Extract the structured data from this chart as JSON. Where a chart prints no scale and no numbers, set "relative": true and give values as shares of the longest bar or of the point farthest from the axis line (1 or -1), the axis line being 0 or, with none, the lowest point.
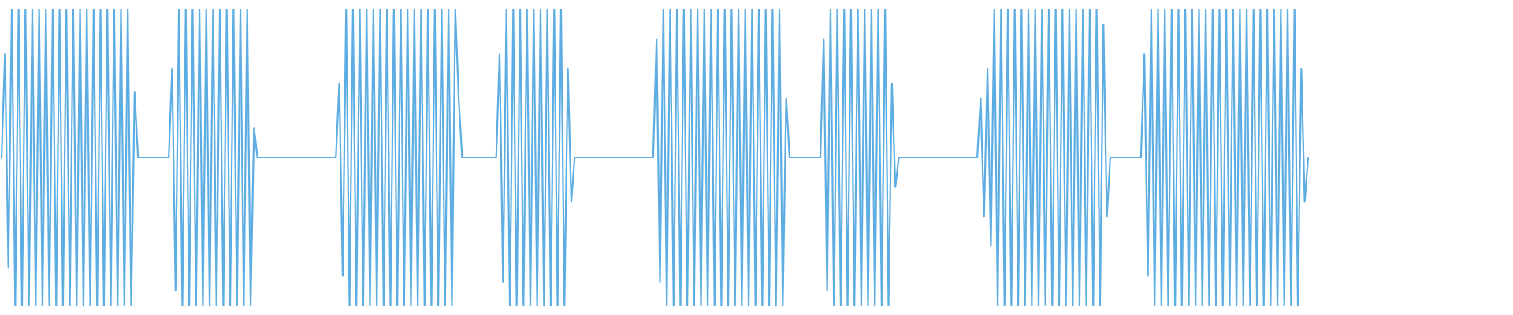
{
  "chart_data": {
    "type": "line",
    "relative": true,
    "categories": [
      null,
      null,
      null,
      null,
      null,
      null,
      null,
      null,
      null,
      null,
      null,
      null,
      null,
      null,
      null,
      null,
      null,
      null,
      null,
      null,
      null,
      null,
      null,
      null,
      null,
      null,
      null,
      null,
      null,
      null,
      null,
      null,
      null,
      null,
      null,
      null,
      null,
      null,
      null,
      null,
      null,
      null,
      null,
      null,
      null,
      null,
      null,
      null,
      null,
      null,
      null,
      null,
      null,
      null,
      null,
      null,
      null,
      null,
      null,
      null,
      null,
      null,
      null,
      null,
      null,
      null,
      null,
      null,
      null,
      null,
      null,
      null,
      null,
      null,
      null,
      null,
      null,
      null,
      null,
      null,
      null,
      null,
      null,
      null,
      null,
      null,
      null,
      null,
      null,
      null,
      null,
      null,
      null,
      null,
      null,
      null,
      null,
      null,
      null,
      null,
      null,
      null,
      null,
      null,
      null,
      null,
      null,
      null,
      null,
      null,
      null,
      null,
      null,
      null,
      null,
      null,
      null,
      null,
      null,
      null,
      null,
      null,
      null,
      null,
      null,
      null,
      null,
      null,
      null,
      null,
      null,
      null,
      null,
      null,
      null,
      null,
      null,
      null,
      null,
      null,
      null,
      null,
      null,
      null,
      null,
      null,
      null,
      null,
      null,
      null,
      null,
      null,
      null,
      null,
      null,
      null,
      null,
      null,
      null,
      null,
      null,
      null,
      null,
      null,
      null,
      null,
      null,
      null,
      null,
      null,
      null,
      null,
      null,
      null,
      null,
      null,
      null,
      null,
      null,
      null,
      null,
      null,
      null,
      null,
      null,
      null,
      null,
      null,
      null,
      null,
      null,
      null,
      null,
      null,
      null,
      null,
      null,
      null,
      null,
      null,
      null,
      null,
      null,
      null,
      null,
      null,
      null,
      null,
      null,
      null,
      null,
      null,
      null,
      null,
      null,
      null,
      null,
      null,
      null,
      null,
      null,
      null,
      null,
      null,
      null,
      null,
      null,
      null,
      null,
      null,
      null,
      null,
      null,
      null,
      null,
      null,
      null,
      null,
      null,
      null,
      null,
      null,
      null,
      null,
      null,
      null,
      null,
      null,
      null,
      null,
      null,
      null,
      null,
      null,
      null,
      null,
      null,
      null,
      null,
      null,
      null,
      null,
      null,
      null,
      null,
      null,
      null,
      null,
      null,
      null,
      null,
      null,
      null,
      null,
      null,
      null,
      null,
      null,
      null,
      null,
      null,
      null,
      null,
      null,
      null,
      null,
      null,
      null,
      null,
      null,
      null,
      null,
      null,
      null,
      null,
      null,
      null,
      null,
      null,
      null,
      null,
      null,
      null,
      null,
      null,
      null,
      null,
      null,
      null,
      null,
      null,
      null,
      null,
      null,
      null,
      null,
      null,
      null,
      null,
      null,
      null,
      null,
      null,
      null,
      null,
      null,
      null,
      null,
      null,
      null,
      null,
      null,
      null,
      null,
      null,
      null,
      null,
      null,
      null,
      null,
      null,
      null,
      null,
      null,
      null,
      null,
      null,
      null,
      null,
      null,
      null,
      null,
      null,
      null,
      null,
      null,
      null,
      null,
      null,
      null,
      null,
      null,
      null,
      null,
      null,
      null,
      null,
      null,
      null,
      null,
      null,
      null,
      null,
      null,
      null,
      null,
      null,
      null,
      null,
      null,
      null,
      null,
      null,
      null
    ],
    "series": [
      {
        "color": "#5dade2",
        "values": [
          0.5,
          0.85,
          0.13,
          1,
          0,
          1,
          0,
          1,
          0,
          1,
          0,
          1,
          0,
          1,
          0,
          1,
          0,
          1,
          0,
          1,
          0,
          1,
          0,
          1,
          0,
          1,
          0,
          1,
          0,
          1,
          0,
          1,
          0,
          1,
          0,
          1,
          0,
          1,
          0,
          0.72,
          0.5,
          0.5,
          0.5,
          0.5,
          0.5,
          0.5,
          0.5,
          0.5,
          0.5,
          0.5,
          0.8,
          0.05,
          1,
          0,
          1,
          0,
          1,
          0,
          1,
          0,
          1,
          0,
          1,
          0,
          1,
          0,
          1,
          0,
          1,
          0,
          1,
          0,
          1,
          0,
          0.6,
          0.5,
          0.5,
          0.5,
          0.5,
          0.5,
          0.5,
          0.5,
          0.5,
          0.5,
          0.5,
          0.5,
          0.5,
          0.5,
          0.5,
          0.5,
          0.5,
          0.5,
          0.5,
          0.5,
          0.5,
          0.5,
          0.5,
          0.5,
          0.5,
          0.75,
          0.1,
          1,
          0,
          1,
          0,
          1,
          0,
          1,
          0,
          1,
          0,
          1,
          0,
          1,
          0,
          1,
          0,
          1,
          0,
          1,
          0,
          1,
          0,
          1,
          0,
          1,
          0,
          1,
          0,
          1,
          0,
          1,
          0,
          1,
          0.7,
          0.5,
          0.5,
          0.5,
          0.5,
          0.5,
          0.5,
          0.5,
          0.5,
          0.5,
          0.5,
          0.5,
          0.85,
          0.08,
          1,
          0,
          1,
          0,
          1,
          0,
          1,
          0,
          1,
          0,
          1,
          0,
          1,
          0,
          1,
          0,
          1,
          0,
          0.8,
          0.35,
          0.5,
          0.5,
          0.5,
          0.5,
          0.5,
          0.5,
          0.5,
          0.5,
          0.5,
          0.5,
          0.5,
          0.5,
          0.5,
          0.5,
          0.5,
          0.5,
          0.5,
          0.5,
          0.5,
          0.5,
          0.5,
          0.5,
          0.5,
          0.5,
          0.9,
          0.08,
          1,
          0,
          1,
          0,
          1,
          0,
          1,
          0,
          1,
          0,
          1,
          0,
          1,
          0,
          1,
          0,
          1,
          0,
          1,
          0,
          1,
          0,
          1,
          0,
          1,
          0,
          1,
          0,
          1,
          0,
          1,
          0,
          1,
          0,
          1,
          0,
          0.7,
          0.5,
          0.5,
          0.5,
          0.5,
          0.5,
          0.5,
          0.5,
          0.5,
          0.5,
          0.5,
          0.9,
          0.05,
          1,
          0,
          1,
          0,
          1,
          0,
          1,
          0,
          1,
          0,
          1,
          0,
          1,
          0,
          1,
          0,
          1,
          0,
          0.75,
          0.4,
          0.5,
          0.5,
          0.5,
          0.5,
          0.5,
          0.5,
          0.5,
          0.5,
          0.5,
          0.5,
          0.5,
          0.5,
          0.5,
          0.5,
          0.5,
          0.5,
          0.5,
          0.5,
          0.5,
          0.5,
          0.5,
          0.5,
          0.5,
          0.5,
          0.7,
          0.3,
          0.8,
          0.2,
          1,
          0,
          1,
          0,
          1,
          0,
          1,
          0,
          1,
          0,
          1,
          0,
          1,
          0,
          1,
          0,
          1,
          0,
          1,
          0,
          1,
          0,
          1,
          0,
          1,
          0,
          1,
          0,
          1,
          0,
          1,
          0,
          0.95,
          0.3,
          0.5,
          0.5,
          0.5,
          0.5,
          0.5,
          0.5,
          0.5,
          0.5,
          0.5,
          0.5,
          0.85,
          0.1,
          1,
          0,
          1,
          0,
          1,
          0,
          1,
          0,
          1,
          0,
          1,
          0,
          1,
          0,
          1,
          0,
          1,
          0,
          1,
          0,
          1,
          0,
          1,
          0,
          1,
          0,
          1,
          0,
          1,
          0,
          1,
          0,
          1,
          0,
          1,
          0,
          1,
          0,
          1,
          0,
          1,
          0,
          1,
          0,
          0.8,
          0.35,
          0.5
        ]
      }
    ]
  }
}
